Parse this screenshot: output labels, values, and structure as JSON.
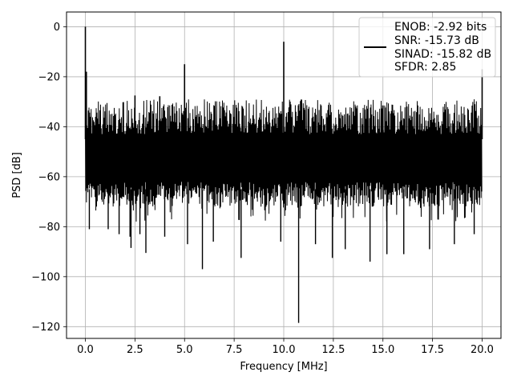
{
  "chart_data": {
    "type": "line",
    "title": "",
    "xlabel": "Frequency [MHz]",
    "ylabel": "PSD [dB]",
    "xlim": [
      -0.95,
      20.95
    ],
    "ylim": [
      -124.7,
      5.9
    ],
    "xticks": [
      0.0,
      2.5,
      5.0,
      7.5,
      10.0,
      12.5,
      15.0,
      17.5,
      20.0
    ],
    "xtick_labels": [
      "0.0",
      "2.5",
      "5.0",
      "7.5",
      "10.0",
      "12.5",
      "15.0",
      "17.5",
      "20.0"
    ],
    "yticks": [
      0,
      -20,
      -40,
      -60,
      -80,
      -100,
      -120
    ],
    "ytick_labels": [
      "0",
      "−20",
      "−40",
      "−60",
      "−80",
      "−100",
      "−120"
    ],
    "grid": true,
    "legend_position": "top-right",
    "legend_lines": [
      "ENOB: -2.92 bits",
      "SNR: -15.73 dB",
      "SINAD: -15.82 dB",
      "SFDR: 2.85"
    ],
    "series": [
      {
        "color": "#000000",
        "noise_floor_band": {
          "x_range": [
            0.0,
            20.0
          ],
          "upper_db": -31,
          "lower_db": -72
        },
        "spikes": [
          {
            "x": 0.0,
            "y": 0.0
          },
          {
            "x": 0.05,
            "y": -18.0
          },
          {
            "x": 2.5,
            "y": -27.5
          },
          {
            "x": 3.75,
            "y": -27.8
          },
          {
            "x": 5.0,
            "y": -15.0
          },
          {
            "x": 10.0,
            "y": -6.0
          },
          {
            "x": 15.0,
            "y": -31.5
          },
          {
            "x": 20.0,
            "y": -17.0
          }
        ],
        "dips": [
          {
            "x": 0.2,
            "y": -81
          },
          {
            "x": 1.15,
            "y": -81
          },
          {
            "x": 1.7,
            "y": -83
          },
          {
            "x": 2.25,
            "y": -84
          },
          {
            "x": 2.3,
            "y": -88.5
          },
          {
            "x": 2.75,
            "y": -83
          },
          {
            "x": 3.05,
            "y": -90.5
          },
          {
            "x": 4.0,
            "y": -84
          },
          {
            "x": 5.15,
            "y": -87
          },
          {
            "x": 5.9,
            "y": -97
          },
          {
            "x": 6.45,
            "y": -86
          },
          {
            "x": 7.85,
            "y": -92.5
          },
          {
            "x": 9.85,
            "y": -86
          },
          {
            "x": 10.75,
            "y": -118.5
          },
          {
            "x": 11.6,
            "y": -87
          },
          {
            "x": 12.45,
            "y": -92.5
          },
          {
            "x": 13.1,
            "y": -89
          },
          {
            "x": 14.35,
            "y": -94
          },
          {
            "x": 15.2,
            "y": -91
          },
          {
            "x": 16.05,
            "y": -91
          },
          {
            "x": 17.35,
            "y": -89
          },
          {
            "x": 18.6,
            "y": -87
          },
          {
            "x": 19.6,
            "y": -83
          }
        ]
      }
    ]
  }
}
